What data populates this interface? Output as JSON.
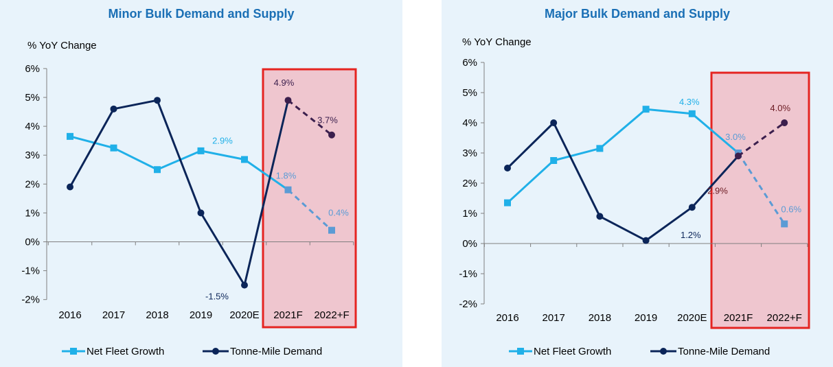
{
  "colors": {
    "fleet": "#20b0e8",
    "fleet_forecast": "#5b9bd5",
    "demand": "#0b2559",
    "demand_forecast": "#3b1f4d",
    "highlight_fill": "#efc6cf",
    "highlight_border": "#e52421",
    "panel_bg": "#e8f3fb",
    "title": "#1a6fb5"
  },
  "chart_data": [
    {
      "type": "line",
      "title": "Minor Bulk Demand and Supply",
      "ylabel": "% YoY Change",
      "categories": [
        "2016",
        "2017",
        "2018",
        "2019",
        "2020E",
        "2021F",
        "2022+F"
      ],
      "ylim": [
        -2,
        6
      ],
      "yticks": [
        "-2%",
        "-1%",
        "0%",
        "1%",
        "2%",
        "3%",
        "4%",
        "5%",
        "6%"
      ],
      "forecast_categories": [
        "2021F",
        "2022+F"
      ],
      "series": [
        {
          "name": "Net Fleet Growth",
          "marker": "square",
          "values": [
            3.65,
            3.25,
            2.5,
            3.15,
            2.85,
            1.8,
            0.4
          ]
        },
        {
          "name": "Tonne-Mile Demand",
          "marker": "circle",
          "values": [
            1.9,
            4.6,
            4.9,
            1.0,
            -1.5,
            4.9,
            3.7
          ]
        }
      ],
      "annotations": [
        {
          "text": "2.9%",
          "series": 0,
          "index": 4,
          "color": "#20b0e8"
        },
        {
          "text": "1.8%",
          "series": 0,
          "index": 5,
          "color": "#5b9bd5"
        },
        {
          "text": "0.4%",
          "series": 0,
          "index": 6,
          "color": "#5b9bd5"
        },
        {
          "text": "-1.5%",
          "series": 1,
          "index": 4,
          "color": "#0b2559"
        },
        {
          "text": "4.9%",
          "series": 1,
          "index": 5,
          "color": "#3b1f4d"
        },
        {
          "text": "3.7%",
          "series": 1,
          "index": 6,
          "color": "#3b1f4d"
        }
      ],
      "legend_position": "bottom"
    },
    {
      "type": "line",
      "title": "Major Bulk Demand and Supply",
      "ylabel": "% YoY Change",
      "categories": [
        "2016",
        "2017",
        "2018",
        "2019",
        "2020E",
        "2021F",
        "2022+F"
      ],
      "ylim": [
        -2,
        6
      ],
      "yticks": [
        "-2%",
        "-1%",
        "0%",
        "1%",
        "2%",
        "3%",
        "4%",
        "5%",
        "6%"
      ],
      "forecast_categories": [
        "2021F",
        "2022+F"
      ],
      "series": [
        {
          "name": "Net Fleet Growth",
          "marker": "square",
          "values": [
            1.35,
            2.75,
            3.15,
            4.45,
            4.3,
            3.0,
            0.65
          ]
        },
        {
          "name": "Tonne-Mile Demand",
          "marker": "circle",
          "values": [
            2.5,
            4.0,
            0.9,
            0.1,
            1.2,
            2.9,
            4.0
          ]
        }
      ],
      "annotations": [
        {
          "text": "4.3%",
          "series": 0,
          "index": 4,
          "color": "#20b0e8"
        },
        {
          "text": "3.0%",
          "series": 0,
          "index": 5,
          "color": "#5b9bd5"
        },
        {
          "text": "0.6%",
          "series": 0,
          "index": 6,
          "color": "#5b9bd5"
        },
        {
          "text": "1.2%",
          "series": 1,
          "index": 4,
          "color": "#0b2559"
        },
        {
          "text": "2.9%",
          "series": 1,
          "index": 5,
          "color": "#6b1a22"
        },
        {
          "text": "4.0%",
          "series": 1,
          "index": 6,
          "color": "#6b1a22"
        }
      ],
      "legend_position": "bottom"
    }
  ]
}
